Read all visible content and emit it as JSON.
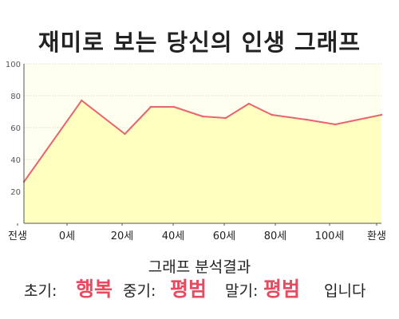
{
  "title": "재미로 보는 당신의 인생 그래프",
  "chart_data": {
    "type": "area",
    "title": "재미로 보는 당신의 인생 그래프",
    "xlabel": "",
    "ylabel": "",
    "x_tick_labels": [
      "전생",
      "0세",
      "20세",
      "40세",
      "60세",
      "80세",
      "100세",
      "환생"
    ],
    "y_ticks": [
      20,
      40,
      60,
      80,
      100
    ],
    "ylim": [
      0,
      100
    ],
    "grid": true,
    "series": [
      {
        "x": [
          -20,
          0,
          15,
          24,
          32,
          42,
          50,
          58,
          66,
          78,
          88,
          104
        ],
        "values": [
          26,
          77,
          56,
          73,
          73,
          67,
          66,
          75,
          68,
          65,
          62,
          68
        ]
      }
    ],
    "colors": {
      "line": "#e8646e",
      "fill": "#ffffbf",
      "plot_background": "#fffff0",
      "grid": "#d0d0d0",
      "axis": "#555555"
    }
  },
  "result": {
    "heading": "그래프 분석결과",
    "early_label": "초기:",
    "early_value": "행복",
    "middle_label": "중기:",
    "middle_value": "평범",
    "late_label": "말기:",
    "late_value": "평범",
    "suffix": "입니다"
  }
}
